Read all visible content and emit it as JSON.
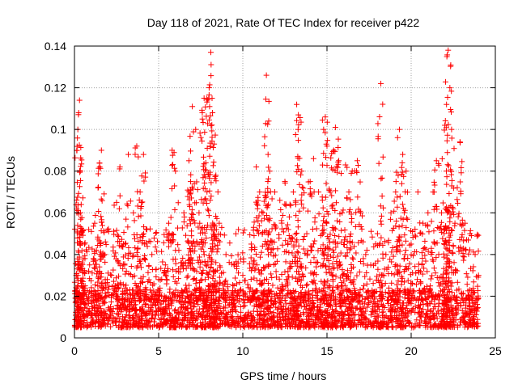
{
  "chart_data": {
    "type": "scatter",
    "title": "Day 118 of 2021, Rate Of TEC Index for receiver p422",
    "xlabel": "GPS time / hours",
    "ylabel": "ROTI / TECUs",
    "xlim": [
      0,
      25
    ],
    "ylim": [
      0,
      0.14
    ],
    "x_ticks": [
      0,
      5,
      10,
      15,
      20,
      25
    ],
    "x_tick_labels": [
      "0",
      "5",
      "10",
      "15",
      "20",
      "25"
    ],
    "y_ticks": [
      0,
      0.02,
      0.04,
      0.06,
      0.08,
      0.1,
      0.12,
      0.14
    ],
    "y_tick_labels": [
      "0",
      "0.02",
      "0.04",
      "0.06",
      "0.08",
      "0.1",
      "0.12",
      "0.14"
    ],
    "grid": true,
    "marker": "plus",
    "marker_color": "#ff0000",
    "data_x_range": [
      0,
      24
    ],
    "baseline_band": [
      0.005,
      0.02
    ],
    "series": [
      {
        "name": "ROTI p422",
        "points": [
          [
            0.1,
            0.03
          ],
          [
            0.15,
            0.06
          ],
          [
            0.2,
            0.1
          ],
          [
            0.25,
            0.108
          ],
          [
            0.3,
            0.114
          ],
          [
            0.35,
            0.08
          ],
          [
            0.4,
            0.064
          ],
          [
            0.6,
            0.045
          ],
          [
            0.9,
            0.035
          ],
          [
            1.2,
            0.055
          ],
          [
            1.4,
            0.072
          ],
          [
            1.5,
            0.082
          ],
          [
            1.6,
            0.09
          ],
          [
            1.8,
            0.04
          ],
          [
            2.2,
            0.03
          ],
          [
            2.5,
            0.065
          ],
          [
            2.7,
            0.082
          ],
          [
            3.0,
            0.045
          ],
          [
            3.2,
            0.088
          ],
          [
            3.5,
            0.06
          ],
          [
            3.7,
            0.092
          ],
          [
            3.9,
            0.07
          ],
          [
            4.1,
            0.088
          ],
          [
            4.3,
            0.052
          ],
          [
            4.6,
            0.04
          ],
          [
            5.0,
            0.028
          ],
          [
            5.4,
            0.035
          ],
          [
            5.6,
            0.055
          ],
          [
            5.8,
            0.09
          ],
          [
            6.0,
            0.08
          ],
          [
            6.2,
            0.042
          ],
          [
            6.5,
            0.06
          ],
          [
            6.8,
            0.085
          ],
          [
            6.9,
            0.075
          ],
          [
            7.0,
            0.111
          ],
          [
            7.2,
            0.1
          ],
          [
            7.4,
            0.06
          ],
          [
            7.6,
            0.105
          ],
          [
            7.7,
            0.115
          ],
          [
            7.8,
            0.084
          ],
          [
            8.0,
            0.12
          ],
          [
            8.1,
            0.137
          ],
          [
            8.2,
            0.108
          ],
          [
            8.3,
            0.093
          ],
          [
            8.4,
            0.078
          ],
          [
            8.6,
            0.055
          ],
          [
            9.0,
            0.04
          ],
          [
            9.5,
            0.035
          ],
          [
            10.0,
            0.03
          ],
          [
            10.5,
            0.045
          ],
          [
            10.8,
            0.082
          ],
          [
            11.0,
            0.07
          ],
          [
            11.2,
            0.06
          ],
          [
            11.4,
            0.126
          ],
          [
            11.5,
            0.088
          ],
          [
            11.6,
            0.08
          ],
          [
            11.9,
            0.07
          ],
          [
            12.2,
            0.066
          ],
          [
            12.5,
            0.075
          ],
          [
            12.8,
            0.064
          ],
          [
            13.0,
            0.07
          ],
          [
            13.2,
            0.112
          ],
          [
            13.3,
            0.107
          ],
          [
            13.5,
            0.08
          ],
          [
            13.8,
            0.05
          ],
          [
            14.0,
            0.075
          ],
          [
            14.2,
            0.086
          ],
          [
            14.5,
            0.07
          ],
          [
            14.8,
            0.1
          ],
          [
            14.9,
            0.106
          ],
          [
            15.0,
            0.092
          ],
          [
            15.2,
            0.07
          ],
          [
            15.4,
            0.09
          ],
          [
            15.5,
            0.101
          ],
          [
            15.7,
            0.085
          ],
          [
            15.9,
            0.06
          ],
          [
            16.1,
            0.083
          ],
          [
            16.3,
            0.07
          ],
          [
            16.5,
            0.08
          ],
          [
            16.8,
            0.085
          ],
          [
            17.0,
            0.06
          ],
          [
            17.3,
            0.04
          ],
          [
            17.6,
            0.035
          ],
          [
            18.0,
            0.05
          ],
          [
            18.2,
            0.122
          ],
          [
            18.5,
            0.04
          ],
          [
            18.8,
            0.06
          ],
          [
            19.1,
            0.075
          ],
          [
            19.3,
            0.1
          ],
          [
            19.5,
            0.088
          ],
          [
            19.7,
            0.08
          ],
          [
            20.0,
            0.045
          ],
          [
            20.4,
            0.07
          ],
          [
            20.7,
            0.055
          ],
          [
            21.0,
            0.06
          ],
          [
            21.3,
            0.07
          ],
          [
            21.5,
            0.085
          ],
          [
            21.8,
            0.06
          ],
          [
            22.0,
            0.102
          ],
          [
            22.1,
            0.112
          ],
          [
            22.2,
            0.138
          ],
          [
            22.3,
            0.12
          ],
          [
            22.4,
            0.1
          ],
          [
            22.6,
            0.055
          ],
          [
            22.9,
            0.094
          ],
          [
            23.2,
            0.055
          ],
          [
            23.5,
            0.05
          ],
          [
            23.8,
            0.04
          ],
          [
            24.0,
            0.03
          ]
        ]
      }
    ]
  }
}
